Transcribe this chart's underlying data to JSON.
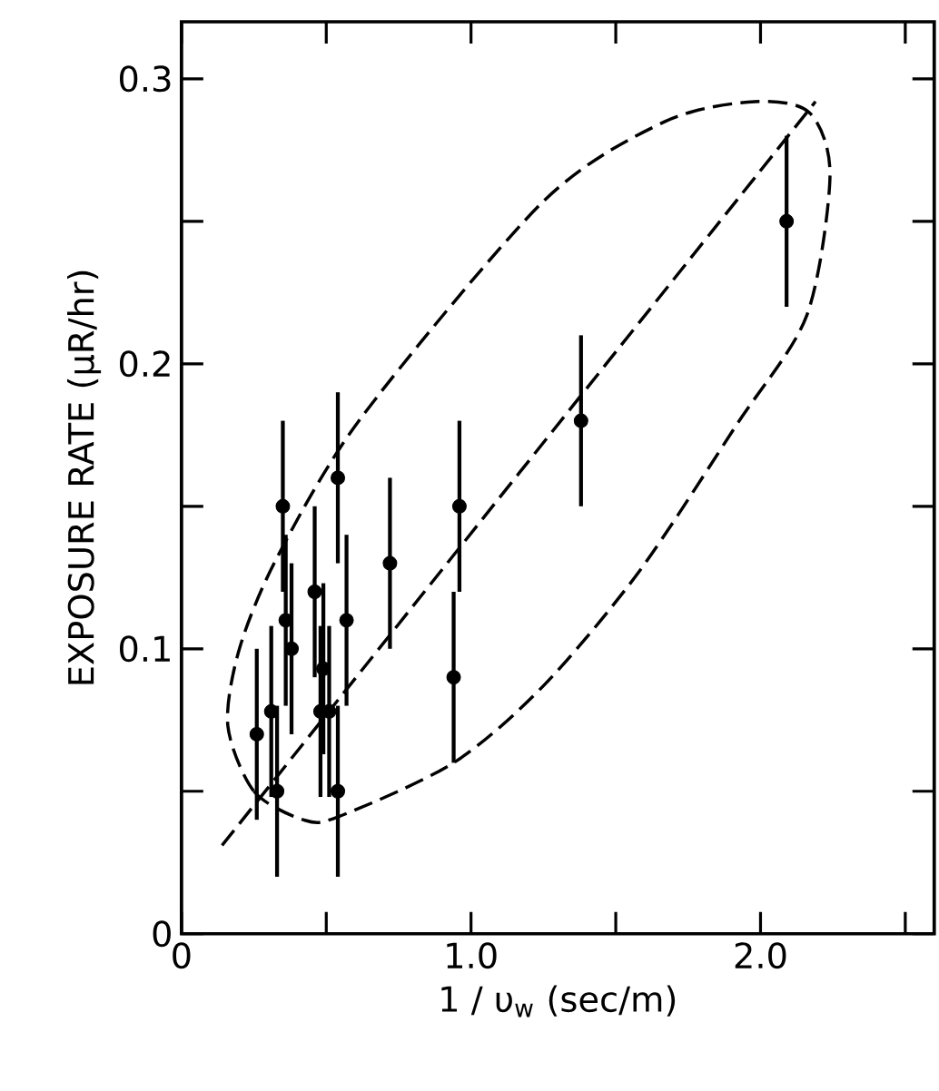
{
  "chart_data": {
    "type": "scatter",
    "xlabel": "1 / υ$_{w}$      (sec/m)",
    "ylabel": "EXPOSURE RATE  (μR/hr)",
    "xlim": [
      0,
      2.6
    ],
    "ylim": [
      0,
      0.32
    ],
    "xticks": [
      {
        "value": 0,
        "label": "0"
      },
      {
        "value": 0.5,
        "label": null
      },
      {
        "value": 1.0,
        "label": "1.0"
      },
      {
        "value": 1.5,
        "label": null
      },
      {
        "value": 2.0,
        "label": "2.0"
      },
      {
        "value": 2.5,
        "label": null
      }
    ],
    "yticks": [
      {
        "value": 0,
        "label": "0"
      },
      {
        "value": 0.05,
        "label": null
      },
      {
        "value": 0.1,
        "label": "0.1"
      },
      {
        "value": 0.15,
        "label": null
      },
      {
        "value": 0.2,
        "label": "0.2"
      },
      {
        "value": 0.25,
        "label": null
      },
      {
        "value": 0.3,
        "label": "0.3"
      }
    ],
    "series": [
      {
        "type": "line",
        "color": "#000000",
        "line_style": "dashed",
        "marker": "none",
        "x": [
          0.14,
          2.19
        ],
        "values": [
          0.031,
          0.292
        ]
      },
      {
        "color": "#000000",
        "marker": "circle",
        "x": [
          0.26,
          0.31,
          0.33,
          0.35,
          0.36,
          0.38,
          0.46,
          0.48,
          0.49,
          0.51,
          0.54,
          0.54,
          0.57,
          0.72,
          0.94,
          0.96,
          1.38,
          2.09
        ],
        "values": [
          0.07,
          0.078,
          0.05,
          0.15,
          0.11,
          0.1,
          0.12,
          0.078,
          0.093,
          0.078,
          0.16,
          0.05,
          0.11,
          0.13,
          0.09,
          0.15,
          0.18,
          0.25
        ],
        "errors": [
          0.03,
          0.03,
          0.03,
          0.03,
          0.03,
          0.03,
          0.03,
          0.03,
          0.03,
          0.03,
          0.03,
          0.03,
          0.03,
          0.03,
          0.03,
          0.03,
          0.03,
          0.03
        ]
      }
    ]
  }
}
